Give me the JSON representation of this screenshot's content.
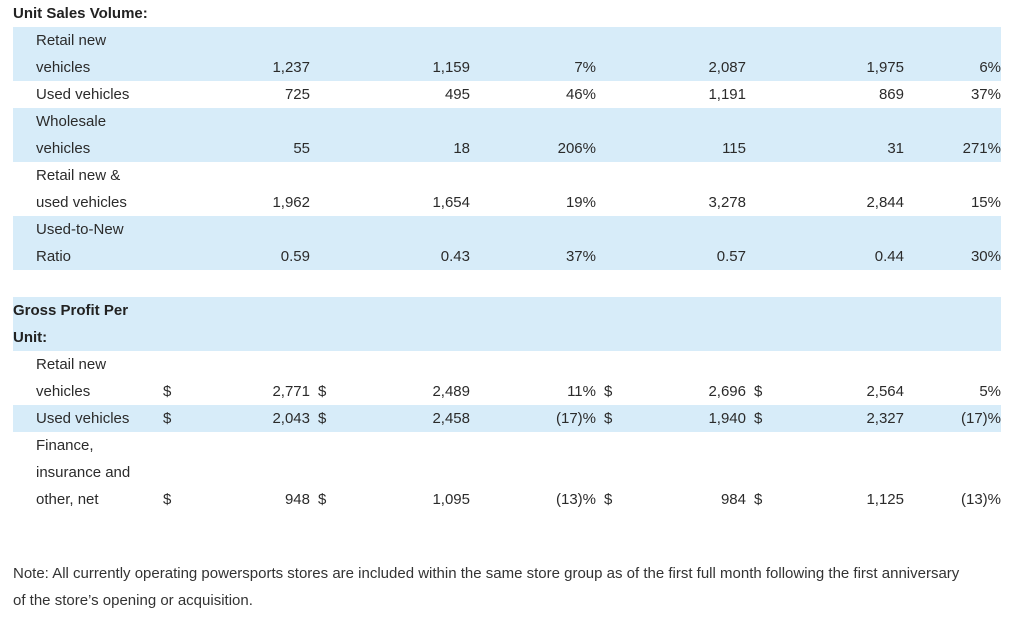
{
  "sections": {
    "unit_sales_title": "Unit Sales Volume:",
    "gross_profit_title_line1": "Gross Profit Per",
    "gross_profit_title_line2": "Unit:"
  },
  "unit_sales_rows": [
    {
      "label1": "Retail new",
      "label2": "vehicles",
      "c1": "1,237",
      "c2": "1,159",
      "c3": "7%",
      "c4": "2,087",
      "c5": "1,975",
      "c6": "6%"
    },
    {
      "label1": "",
      "label2": "Used vehicles",
      "c1": "725",
      "c2": "495",
      "c3": "46%",
      "c4": "1,191",
      "c5": "869",
      "c6": "37%"
    },
    {
      "label1": "Wholesale",
      "label2": "vehicles",
      "c1": "55",
      "c2": "18",
      "c3": "206%",
      "c4": "115",
      "c5": "31",
      "c6": "271%"
    },
    {
      "label1": "Retail new &",
      "label2": "used vehicles",
      "c1": "1,962",
      "c2": "1,654",
      "c3": "19%",
      "c4": "3,278",
      "c5": "2,844",
      "c6": "15%"
    },
    {
      "label1": "Used-to-New",
      "label2": "Ratio",
      "c1": "0.59",
      "c2": "0.43",
      "c3": "37%",
      "c4": "0.57",
      "c5": "0.44",
      "c6": "30%"
    }
  ],
  "gross_profit_rows": [
    {
      "label1": "Retail new",
      "label2": "",
      "label3": "vehicles",
      "cur": "$",
      "c1": "2,771",
      "c2": "2,489",
      "c3": "11%",
      "c4": "2,696",
      "c5": "2,564",
      "c6": "5%"
    },
    {
      "label3": "Used vehicles",
      "cur": "$",
      "c1": "2,043",
      "c2": "2,458",
      "c3": "(17)%",
      "c4": "1,940",
      "c5": "2,327",
      "c6": "(17)%"
    },
    {
      "label1": "Finance,",
      "label2": "insurance and",
      "label3": "other, net",
      "cur": "$",
      "c1": "948",
      "c2": "1,095",
      "c3": "(13)%",
      "c4": "984",
      "c5": "1,125",
      "c6": "(13)%"
    }
  ],
  "note": "Note: All currently operating powersports stores are included within the same store group as of the first full month following the first anniversary of the store’s opening or acquisition."
}
